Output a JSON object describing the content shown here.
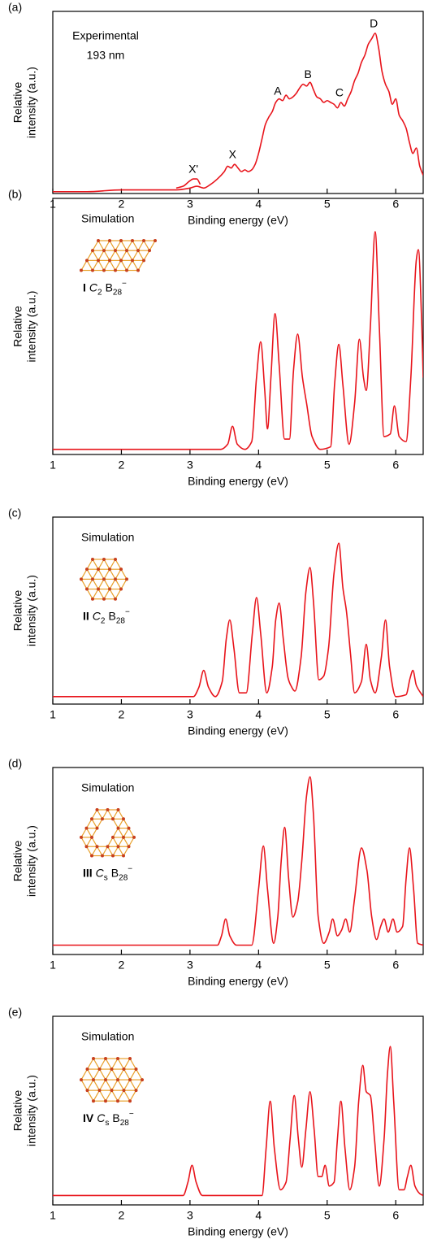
{
  "chart_data": [
    {
      "type": "line",
      "panel": "(a)",
      "xlabel": "Binding energy (eV)",
      "ylabel": "Relative intensity (a.u.)",
      "xlim": [
        1,
        6.4
      ],
      "xticks": [
        1,
        2,
        3,
        4,
        5,
        6
      ],
      "ylim": [
        0,
        1
      ],
      "note": [
        "Experimental",
        "193 nm"
      ],
      "annotations": [
        {
          "text": "X'",
          "x": 3.05,
          "y": 0.13
        },
        {
          "text": "X",
          "x": 3.62,
          "y": 0.21
        },
        {
          "text": "A",
          "x": 4.28,
          "y": 0.56
        },
        {
          "text": "B",
          "x": 4.72,
          "y": 0.65
        },
        {
          "text": "C",
          "x": 5.18,
          "y": 0.55
        },
        {
          "text": "D",
          "x": 5.68,
          "y": 0.93
        }
      ],
      "series": [
        {
          "color": "#e8141b",
          "x": [
            1.0,
            1.5,
            2.0,
            2.5,
            2.8,
            3.0,
            3.1,
            3.2,
            3.3,
            3.4,
            3.5,
            3.55,
            3.6,
            3.65,
            3.7,
            3.75,
            3.8,
            3.85,
            3.9,
            3.95,
            4.0,
            4.05,
            4.1,
            4.15,
            4.2,
            4.25,
            4.3,
            4.35,
            4.4,
            4.45,
            4.5,
            4.55,
            4.6,
            4.65,
            4.7,
            4.75,
            4.8,
            4.85,
            4.9,
            4.95,
            5.0,
            5.05,
            5.1,
            5.15,
            5.2,
            5.25,
            5.3,
            5.35,
            5.4,
            5.45,
            5.5,
            5.55,
            5.6,
            5.65,
            5.7,
            5.75,
            5.8,
            5.85,
            5.9,
            5.95,
            6.0,
            6.05,
            6.1,
            6.15,
            6.2,
            6.25,
            6.3,
            6.35,
            6.4
          ],
          "values": [
            0.01,
            0.01,
            0.02,
            0.02,
            0.02,
            0.03,
            0.04,
            0.03,
            0.05,
            0.08,
            0.12,
            0.15,
            0.14,
            0.16,
            0.14,
            0.12,
            0.13,
            0.12,
            0.13,
            0.16,
            0.22,
            0.3,
            0.38,
            0.42,
            0.45,
            0.5,
            0.52,
            0.51,
            0.54,
            0.52,
            0.53,
            0.55,
            0.58,
            0.6,
            0.59,
            0.61,
            0.57,
            0.53,
            0.52,
            0.5,
            0.51,
            0.5,
            0.49,
            0.47,
            0.5,
            0.48,
            0.52,
            0.56,
            0.62,
            0.66,
            0.72,
            0.76,
            0.82,
            0.85,
            0.88,
            0.8,
            0.67,
            0.6,
            0.56,
            0.49,
            0.52,
            0.43,
            0.4,
            0.36,
            0.28,
            0.22,
            0.25,
            0.15,
            0.1
          ]
        },
        {
          "color": "#e8141b",
          "x": [
            2.8,
            2.9,
            3.0,
            3.05,
            3.1,
            3.15
          ],
          "values": [
            0.03,
            0.04,
            0.07,
            0.08,
            0.08,
            0.05
          ]
        }
      ]
    },
    {
      "type": "line",
      "panel": "(b)",
      "xlabel": "Binding energy (eV)",
      "ylabel": "Relative intensity (a.u.)",
      "xlim": [
        1,
        6.4
      ],
      "xticks": [
        1,
        2,
        3,
        4,
        5,
        6
      ],
      "ylim": [
        0,
        1
      ],
      "note": [
        "Simulation"
      ],
      "isomer": {
        "numeral": "I",
        "group": "C",
        "group_sub": "2",
        "formula": "B",
        "formula_sub": "28",
        "charge": "−"
      },
      "series": [
        {
          "color": "#e8141b",
          "x": [
            1.0,
            3.45,
            3.55,
            3.62,
            3.69,
            3.8,
            3.9,
            3.97,
            4.03,
            4.09,
            4.13,
            4.18,
            4.24,
            4.3,
            4.38,
            4.45,
            4.51,
            4.57,
            4.64,
            4.7,
            4.78,
            4.9,
            5.05,
            5.11,
            5.17,
            5.23,
            5.32,
            5.4,
            5.47,
            5.53,
            5.57,
            5.63,
            5.7,
            5.76,
            5.83,
            5.92,
            5.98,
            6.05,
            6.15,
            6.22,
            6.3,
            6.33,
            6.38,
            6.4
          ],
          "values": [
            0.02,
            0.02,
            0.04,
            0.11,
            0.04,
            0.02,
            0.05,
            0.3,
            0.44,
            0.25,
            0.1,
            0.3,
            0.55,
            0.35,
            0.06,
            0.06,
            0.33,
            0.47,
            0.3,
            0.2,
            0.07,
            0.02,
            0.03,
            0.28,
            0.43,
            0.27,
            0.04,
            0.2,
            0.45,
            0.3,
            0.25,
            0.5,
            0.87,
            0.5,
            0.07,
            0.08,
            0.19,
            0.07,
            0.05,
            0.3,
            0.76,
            0.8,
            0.5,
            0.3
          ]
        }
      ]
    },
    {
      "type": "line",
      "panel": "(c)",
      "xlabel": "Binding energy (eV)",
      "ylabel": "Relative intensity (a.u.)",
      "xlim": [
        1,
        6.4
      ],
      "xticks": [
        1,
        2,
        3,
        4,
        5,
        6
      ],
      "ylim": [
        0,
        1
      ],
      "note": [
        "Simulation"
      ],
      "isomer": {
        "numeral": "II",
        "group": "C",
        "group_sub": "2",
        "formula": "B",
        "formula_sub": "28",
        "charge": "−"
      },
      "series": [
        {
          "color": "#e8141b",
          "x": [
            1.0,
            3.05,
            3.13,
            3.2,
            3.27,
            3.37,
            3.47,
            3.53,
            3.58,
            3.64,
            3.72,
            3.82,
            3.91,
            3.97,
            4.03,
            4.12,
            4.2,
            4.25,
            4.3,
            4.36,
            4.43,
            4.47,
            4.53,
            4.62,
            4.69,
            4.75,
            4.8,
            4.88,
            4.95,
            5.02,
            5.1,
            5.17,
            5.23,
            5.28,
            5.34,
            5.4,
            5.5,
            5.57,
            5.63,
            5.7,
            5.79,
            5.85,
            5.91,
            6.0,
            6.15,
            6.21,
            6.25,
            6.3,
            6.4
          ],
          "values": [
            0.04,
            0.04,
            0.09,
            0.18,
            0.09,
            0.04,
            0.12,
            0.35,
            0.45,
            0.3,
            0.06,
            0.06,
            0.38,
            0.57,
            0.38,
            0.06,
            0.2,
            0.45,
            0.54,
            0.35,
            0.14,
            0.1,
            0.07,
            0.25,
            0.6,
            0.73,
            0.55,
            0.13,
            0.15,
            0.3,
            0.7,
            0.86,
            0.62,
            0.5,
            0.27,
            0.06,
            0.12,
            0.32,
            0.13,
            0.06,
            0.25,
            0.45,
            0.2,
            0.04,
            0.05,
            0.14,
            0.18,
            0.1,
            0.04
          ]
        }
      ]
    },
    {
      "type": "line",
      "panel": "(d)",
      "xlabel": "Binding energy (eV)",
      "ylabel": "Relative intensity (a.u.)",
      "xlim": [
        1,
        6.4
      ],
      "xticks": [
        1,
        2,
        3,
        4,
        5,
        6
      ],
      "ylim": [
        0,
        1
      ],
      "note": [
        "Simulation"
      ],
      "isomer": {
        "numeral": "III",
        "group": "C",
        "group_sub": "s",
        "formula": "B",
        "formula_sub": "28",
        "charge": "−"
      },
      "series": [
        {
          "color": "#e8141b",
          "x": [
            1.0,
            3.4,
            3.46,
            3.52,
            3.58,
            3.68,
            3.9,
            4.0,
            4.07,
            4.13,
            4.22,
            4.28,
            4.33,
            4.38,
            4.44,
            4.5,
            4.57,
            4.63,
            4.7,
            4.75,
            4.8,
            4.87,
            4.95,
            5.03,
            5.08,
            5.15,
            5.21,
            5.27,
            5.33,
            5.4,
            5.5,
            5.58,
            5.65,
            5.72,
            5.78,
            5.83,
            5.89,
            5.96,
            6.02,
            6.1,
            6.15,
            6.2,
            6.26,
            6.32,
            6.4
          ],
          "values": [
            0.05,
            0.05,
            0.1,
            0.19,
            0.1,
            0.05,
            0.05,
            0.35,
            0.58,
            0.35,
            0.06,
            0.2,
            0.5,
            0.68,
            0.4,
            0.2,
            0.28,
            0.5,
            0.85,
            0.95,
            0.75,
            0.2,
            0.06,
            0.12,
            0.19,
            0.1,
            0.13,
            0.19,
            0.12,
            0.3,
            0.57,
            0.45,
            0.2,
            0.08,
            0.15,
            0.19,
            0.12,
            0.19,
            0.12,
            0.15,
            0.4,
            0.57,
            0.35,
            0.06,
            0.05
          ]
        }
      ]
    },
    {
      "type": "line",
      "panel": "(e)",
      "xlabel": "Binding energy (eV)",
      "ylabel": "Relative intensity (a.u.)",
      "xlim": [
        1,
        6.4
      ],
      "xticks": [
        1,
        2,
        3,
        4,
        5,
        6
      ],
      "ylim": [
        0,
        1
      ],
      "note": [
        "Simulation"
      ],
      "isomer": {
        "numeral": "IV",
        "group": "C",
        "group_sub": "s",
        "formula": "B",
        "formula_sub": "28",
        "charge": "−"
      },
      "series": [
        {
          "color": "#e8141b",
          "x": [
            1.0,
            2.9,
            2.97,
            3.03,
            3.09,
            3.18,
            4.05,
            4.11,
            4.17,
            4.23,
            4.32,
            4.4,
            4.46,
            4.52,
            4.58,
            4.63,
            4.69,
            4.75,
            4.81,
            4.87,
            4.92,
            4.97,
            5.03,
            5.1,
            5.15,
            5.2,
            5.26,
            5.33,
            5.4,
            5.46,
            5.52,
            5.57,
            5.63,
            5.69,
            5.76,
            5.83,
            5.88,
            5.92,
            5.97,
            6.05,
            6.12,
            6.17,
            6.22,
            6.28,
            6.35,
            6.4
          ],
          "values": [
            0.05,
            0.05,
            0.12,
            0.21,
            0.12,
            0.05,
            0.05,
            0.3,
            0.55,
            0.3,
            0.08,
            0.12,
            0.35,
            0.58,
            0.35,
            0.2,
            0.4,
            0.6,
            0.4,
            0.15,
            0.15,
            0.21,
            0.1,
            0.12,
            0.35,
            0.55,
            0.3,
            0.08,
            0.2,
            0.55,
            0.74,
            0.6,
            0.58,
            0.35,
            0.1,
            0.35,
            0.7,
            0.84,
            0.55,
            0.08,
            0.08,
            0.15,
            0.21,
            0.1,
            0.06,
            0.05
          ]
        }
      ]
    }
  ]
}
